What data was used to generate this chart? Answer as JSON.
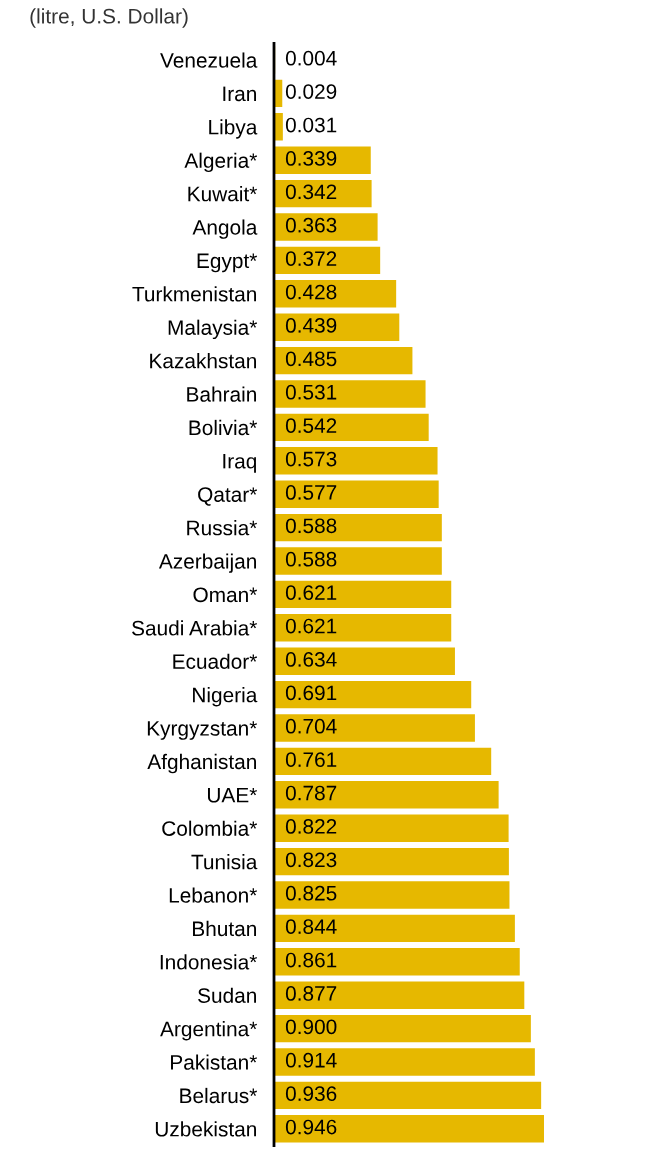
{
  "chart_data": {
    "type": "bar",
    "orientation": "horizontal",
    "subtitle": "(litre, U.S. Dollar)",
    "categories": [
      "Venezuela",
      "Iran",
      "Libya",
      "Algeria*",
      "Kuwait*",
      "Angola",
      "Egypt*",
      "Turkmenistan",
      "Malaysia*",
      "Kazakhstan",
      "Bahrain",
      "Bolivia*",
      "Iraq",
      "Qatar*",
      "Russia*",
      "Azerbaijan",
      "Oman*",
      "Saudi Arabia*",
      "Ecuador*",
      "Nigeria",
      "Kyrgyzstan*",
      "Afghanistan",
      "UAE*",
      "Colombia*",
      "Tunisia",
      "Lebanon*",
      "Bhutan",
      "Indonesia*",
      "Sudan",
      "Argentina*",
      "Pakistan*",
      "Belarus*",
      "Uzbekistan"
    ],
    "values": [
      0.004,
      0.029,
      0.031,
      0.339,
      0.342,
      0.363,
      0.372,
      0.428,
      0.439,
      0.485,
      0.531,
      0.542,
      0.573,
      0.577,
      0.588,
      0.588,
      0.621,
      0.621,
      0.634,
      0.691,
      0.704,
      0.761,
      0.787,
      0.822,
      0.823,
      0.825,
      0.844,
      0.861,
      0.877,
      0.9,
      0.914,
      0.936,
      0.946
    ],
    "value_labels": [
      "0.004",
      "0.029",
      "0.031",
      "0.339",
      "0.342",
      "0.363",
      "0.372",
      "0.428",
      "0.439",
      "0.485",
      "0.531",
      "0.542",
      "0.573",
      "0.577",
      "0.588",
      "0.588",
      "0.621",
      "0.621",
      "0.634",
      "0.691",
      "0.704",
      "0.761",
      "0.787",
      "0.822",
      "0.823",
      "0.825",
      "0.844",
      "0.861",
      "0.877",
      "0.900",
      "0.914",
      "0.936",
      "0.946"
    ],
    "color": "#e6b800"
  }
}
